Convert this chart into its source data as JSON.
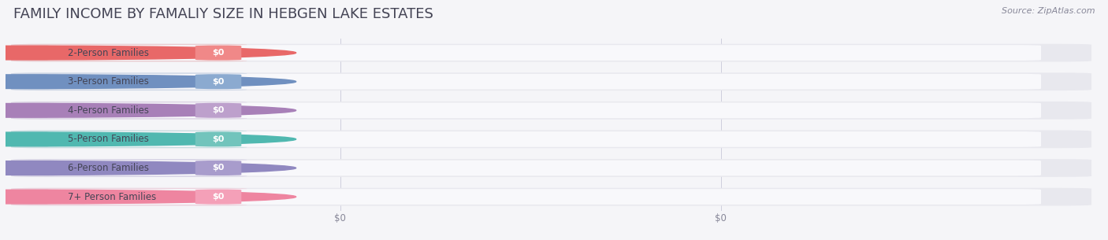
{
  "title": "FAMILY INCOME BY FAMALIY SIZE IN HEBGEN LAKE ESTATES",
  "source": "Source: ZipAtlas.com",
  "categories": [
    "2-Person Families",
    "3-Person Families",
    "4-Person Families",
    "5-Person Families",
    "6-Person Families",
    "7+ Person Families"
  ],
  "values": [
    0,
    0,
    0,
    0,
    0,
    0
  ],
  "bar_colors": [
    "#F08888",
    "#8BAAD0",
    "#BDA0CC",
    "#72C4BC",
    "#A89CCC",
    "#F4A0B8"
  ],
  "dot_colors": [
    "#E86868",
    "#7090C0",
    "#A880B8",
    "#50B8B0",
    "#9088C0",
    "#EE85A0"
  ],
  "bg_color": "#f5f5f8",
  "bar_bg_color": "#e8e8ee",
  "label_bg_color": "#f0f0f5",
  "value_label": "$0",
  "title_fontsize": 13,
  "source_fontsize": 8,
  "label_fontsize": 8.5,
  "tick_fontsize": 8.5
}
